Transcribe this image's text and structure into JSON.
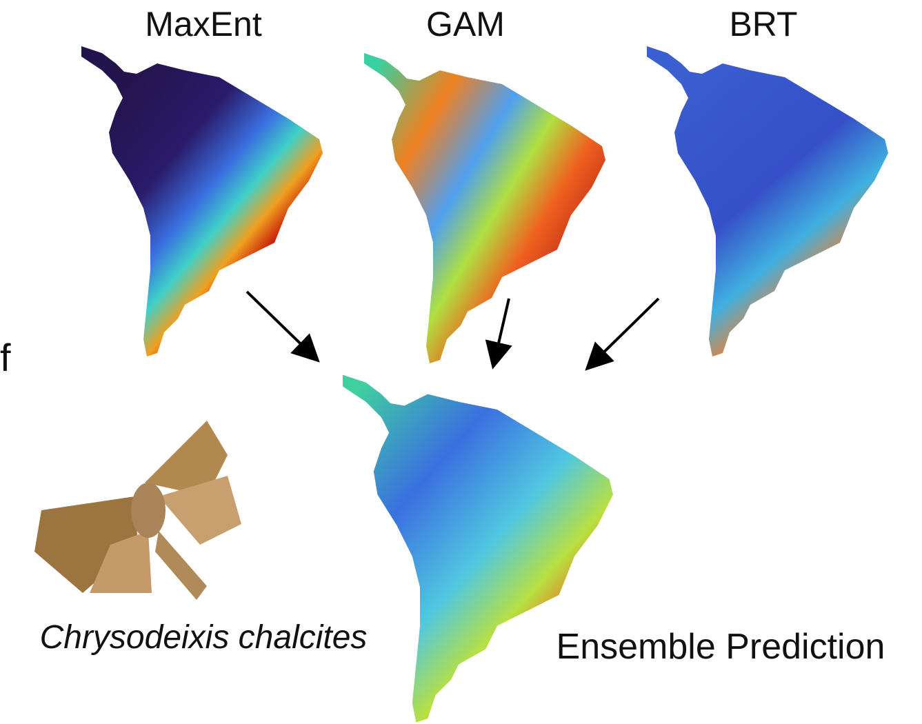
{
  "panel_label": "f",
  "model_titles": [
    "MaxEnt",
    "GAM",
    "BRT"
  ],
  "species": "Chrysodeixis chalcites",
  "ensemble_title": "Ensemble Prediction"
}
